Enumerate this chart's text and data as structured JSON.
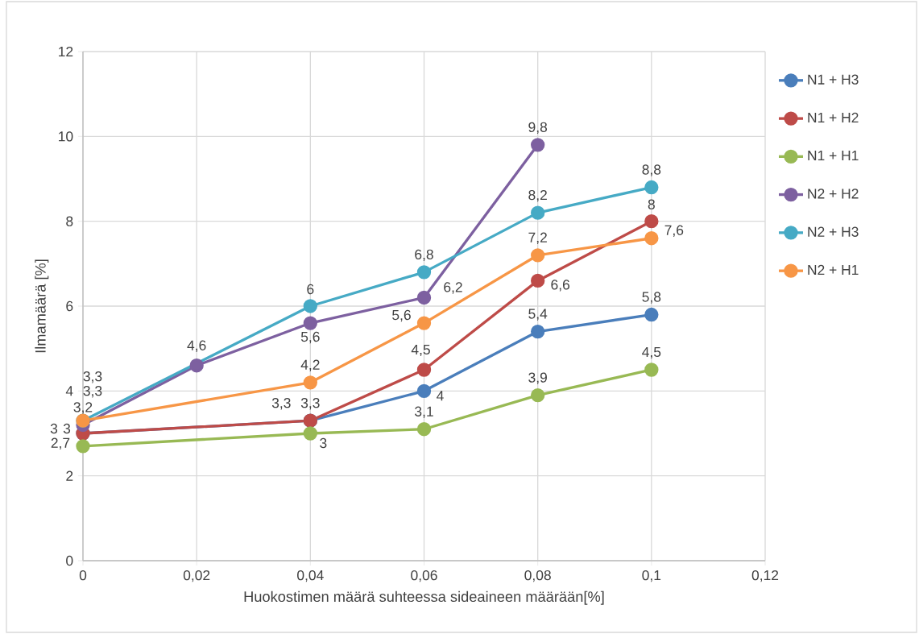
{
  "chart_data": {
    "type": "line",
    "xlabel": "Huokostimen määrä suhteessa sideaineen määrään[%]",
    "ylabel": "Ilmamäärä [%]",
    "xlim": [
      0,
      0.12
    ],
    "ylim": [
      0,
      12
    ],
    "xticks": [
      {
        "value": 0,
        "label": "0"
      },
      {
        "value": 0.02,
        "label": "0,02"
      },
      {
        "value": 0.04,
        "label": "0,04"
      },
      {
        "value": 0.06,
        "label": "0,06"
      },
      {
        "value": 0.08,
        "label": "0,08"
      },
      {
        "value": 0.1,
        "label": "0,1"
      },
      {
        "value": 0.12,
        "label": "0,12"
      }
    ],
    "yticks": [
      0,
      2,
      4,
      6,
      8,
      10,
      12
    ],
    "grid": true,
    "legend": "right",
    "marker": "circle",
    "line_style": "solid",
    "series": [
      {
        "name": "N1 + H3",
        "color": "#4a7ebb",
        "x": [
          0,
          0.04,
          0.06,
          0.08,
          0.1
        ],
        "values": [
          3,
          3.3,
          4,
          5.4,
          5.8
        ],
        "value_labels": [
          "3",
          "3,3",
          "4",
          "5,4",
          "5,8"
        ]
      },
      {
        "name": "N1 + H2",
        "color": "#be4b48",
        "x": [
          0,
          0.04,
          0.06,
          0.08,
          0.1
        ],
        "values": [
          3,
          3.3,
          4.5,
          6.6,
          8
        ],
        "value_labels": [
          "3",
          "3,3",
          "4,5",
          "6,6",
          "8"
        ]
      },
      {
        "name": "N1 + H1",
        "color": "#98b954",
        "x": [
          0,
          0.04,
          0.06,
          0.08,
          0.1
        ],
        "values": [
          2.7,
          3,
          3.1,
          3.9,
          4.5
        ],
        "value_labels": [
          "2,7",
          "3",
          "3,1",
          "3,9",
          "4,5"
        ]
      },
      {
        "name": "N2 + H2",
        "color": "#7d60a0",
        "x": [
          0,
          0.02,
          0.04,
          0.06,
          0.08
        ],
        "values": [
          3.2,
          4.6,
          5.6,
          6.2,
          9.8
        ],
        "value_labels": [
          "3,2",
          "4,6",
          "5,6",
          "6,2",
          "9,8"
        ]
      },
      {
        "name": "N2 + H3",
        "color": "#46aac5",
        "x": [
          0,
          0.04,
          0.06,
          0.08,
          0.1
        ],
        "values": [
          3.3,
          6,
          6.8,
          8.2,
          8.8
        ],
        "value_labels": [
          "3,3",
          "6",
          "6,8",
          "8,2",
          "8,8"
        ]
      },
      {
        "name": "N2 + H1",
        "color": "#f79646",
        "x": [
          0,
          0.04,
          0.06,
          0.08,
          0.1
        ],
        "values": [
          3.3,
          4.2,
          5.6,
          7.2,
          7.6
        ],
        "value_labels": [
          "3,3",
          "4,2",
          "5,6",
          "7,2",
          "7,6"
        ]
      }
    ]
  }
}
